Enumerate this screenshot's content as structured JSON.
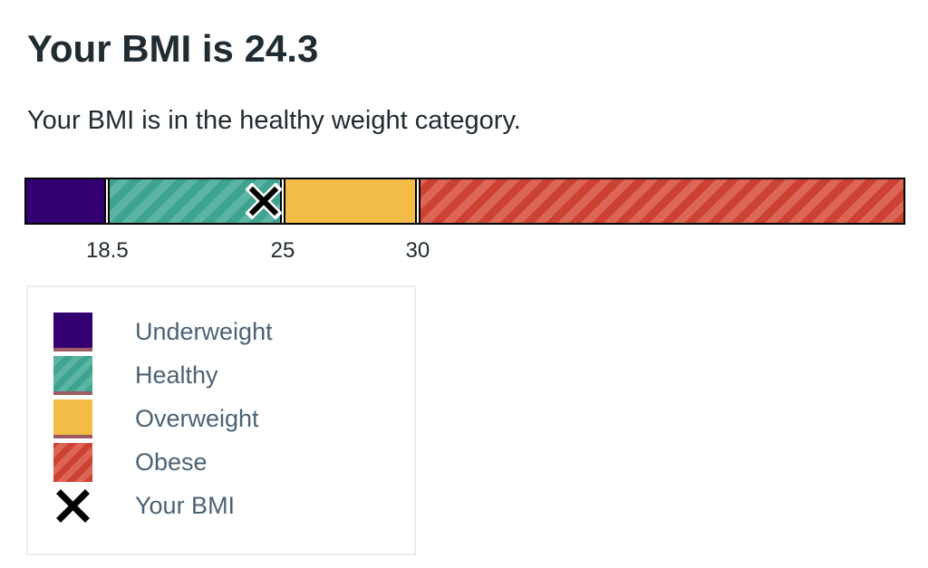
{
  "title": "Your BMI is 24.3",
  "result_text": "Your BMI is in the healthy weight category.",
  "bmi_value": 24.3,
  "scale": {
    "min": 15.5,
    "max": 48,
    "thresholds": [
      {
        "value": 18.5,
        "label": "18.5"
      },
      {
        "value": 25,
        "label": "25"
      },
      {
        "value": 30,
        "label": "30"
      }
    ]
  },
  "colors": {
    "underweight": "#330072",
    "healthy": "#3ea38f",
    "overweight": "#f2bc47",
    "obese": "#cc4232",
    "marker": "#000000"
  },
  "legend": {
    "items": [
      {
        "label": "Underweight",
        "icon": "underweight-swatch"
      },
      {
        "label": "Healthy",
        "icon": "healthy-swatch"
      },
      {
        "label": "Overweight",
        "icon": "overweight-swatch"
      },
      {
        "label": "Obese",
        "icon": "obese-swatch"
      },
      {
        "label": "Your BMI",
        "icon": "cross-marker-icon"
      }
    ]
  }
}
